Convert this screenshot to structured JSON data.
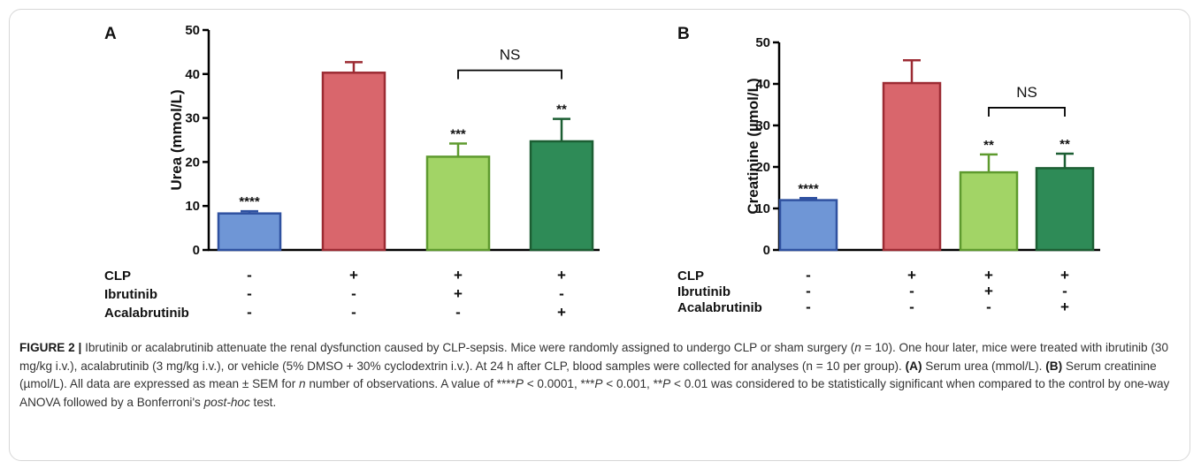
{
  "figure_number": "FIGURE 2 |",
  "caption": [
    {
      "t": "Ibrutinib or acalabrutinib attenuate the renal dysfunction caused by CLP-sepsis. Mice were randomly assigned to undergo CLP or sham surgery ("
    },
    {
      "t": "n",
      "i": true
    },
    {
      "t": " = 10). One hour later, mice were treated with ibrutinib (30 mg/kg i.v.), acalabrutinib (3 mg/kg i.v.), or vehicle (5% DMSO + 30% cyclodextrin i.v.). At 24 h after CLP, blood samples were collected for analyses (n = 10 per group). "
    },
    {
      "t": "(A)",
      "b": true
    },
    {
      "t": " Serum urea (mmol/L). "
    },
    {
      "t": "(B)",
      "b": true
    },
    {
      "t": " Serum creatinine (µmol/L). All data are expressed as mean ± SEM for "
    },
    {
      "t": "n",
      "i": true
    },
    {
      "t": " number of observations. A value of ****"
    },
    {
      "t": "P",
      "i": true
    },
    {
      "t": " < 0.0001, ***"
    },
    {
      "t": "P",
      "i": true
    },
    {
      "t": " < 0.001, **"
    },
    {
      "t": "P",
      "i": true
    },
    {
      "t": " < 0.01 was considered to be statistically significant when compared to the control by one-way ANOVA followed by a Bonferroni's "
    },
    {
      "t": "post-hoc",
      "i": true
    },
    {
      "t": " test."
    }
  ],
  "chart_data": [
    {
      "type": "bar",
      "panel": "A",
      "ylabel": "Urea (mmol/L)",
      "ylim": [
        0,
        50
      ],
      "yticks": [
        0,
        10,
        20,
        30,
        40,
        50
      ],
      "values": [
        8.3,
        40.3,
        21.2,
        24.7
      ],
      "errors": [
        0.5,
        2.4,
        3.0,
        5.1
      ],
      "colors": [
        "#6f96d6",
        "#d9666c",
        "#a2d466",
        "#2e8b57"
      ],
      "edge_colors": [
        "#2f51a0",
        "#9c2b33",
        "#5e9a2e",
        "#1c5e33"
      ],
      "significance": [
        "****",
        "",
        "***",
        "**"
      ],
      "comparison": {
        "from": 2,
        "to": 3,
        "label": "NS"
      },
      "conditions": [
        {
          "label": "CLP",
          "values": [
            "-",
            "+",
            "+",
            "+"
          ]
        },
        {
          "label": "Ibrutinib",
          "values": [
            "-",
            "-",
            "+",
            "-"
          ]
        },
        {
          "label": "Acalabrutinib",
          "values": [
            "-",
            "-",
            "-",
            "+"
          ]
        }
      ]
    },
    {
      "type": "bar",
      "panel": "B",
      "ylabel": "Creatinine (µmol/L)",
      "ylim": [
        0,
        50
      ],
      "yticks": [
        0,
        10,
        20,
        30,
        40,
        50
      ],
      "values": [
        12.0,
        40.2,
        18.7,
        19.7
      ],
      "errors": [
        0.5,
        5.5,
        4.3,
        3.5
      ],
      "colors": [
        "#6f96d6",
        "#d9666c",
        "#a2d466",
        "#2e8b57"
      ],
      "edge_colors": [
        "#2f51a0",
        "#9c2b33",
        "#5e9a2e",
        "#1c5e33"
      ],
      "significance": [
        "****",
        "",
        "**",
        "**"
      ],
      "comparison": {
        "from": 2,
        "to": 3,
        "label": "NS"
      },
      "conditions": [
        {
          "label": "CLP",
          "values": [
            "-",
            "+",
            "+",
            "+"
          ]
        },
        {
          "label": "Ibrutinib",
          "values": [
            "-",
            "-",
            "+",
            "-"
          ]
        },
        {
          "label": "Acalabrutinib",
          "values": [
            "-",
            "-",
            "-",
            "+"
          ]
        }
      ]
    }
  ]
}
